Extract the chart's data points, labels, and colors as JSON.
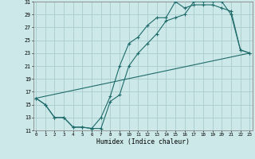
{
  "xlabel": "Humidex (Indice chaleur)",
  "bg_color": "#cce8e8",
  "grid_color": "#aacccc",
  "line_color": "#1f6b6b",
  "xlim": [
    0,
    23
  ],
  "ylim": [
    11,
    31
  ],
  "xtick_vals": [
    0,
    1,
    2,
    3,
    4,
    5,
    6,
    7,
    8,
    9,
    10,
    11,
    12,
    13,
    14,
    15,
    16,
    17,
    18,
    19,
    20,
    21,
    22,
    23
  ],
  "ytick_vals": [
    11,
    13,
    15,
    17,
    19,
    21,
    23,
    25,
    27,
    29,
    31
  ],
  "line1_x": [
    0,
    1,
    2,
    3,
    4,
    5,
    6,
    7,
    8,
    9,
    10,
    11,
    12,
    13,
    14,
    15,
    16,
    17,
    18,
    19,
    20,
    21,
    22,
    23
  ],
  "line1_y": [
    16,
    15,
    13,
    13,
    11.5,
    11.5,
    11.3,
    11.3,
    15.5,
    16.5,
    21.0,
    23.0,
    24.5,
    26.0,
    28.0,
    28.5,
    29.0,
    31.0,
    31.0,
    31.0,
    31.0,
    29.0,
    23.5,
    23.0
  ],
  "line2_x": [
    0,
    1,
    2,
    3,
    4,
    5,
    6,
    7,
    8,
    9,
    10,
    11,
    12,
    13,
    14,
    15,
    16,
    17,
    18,
    19,
    20,
    21,
    22,
    23
  ],
  "line2_y": [
    16,
    15,
    13,
    13,
    11.5,
    11.5,
    11.3,
    13.0,
    16.3,
    21.0,
    24.5,
    25.5,
    27.3,
    28.5,
    28.5,
    31.0,
    30.0,
    30.5,
    30.5,
    30.5,
    30.0,
    29.5,
    23.5,
    23.0
  ],
  "line3_x": [
    0,
    23
  ],
  "line3_y": [
    16,
    23.0
  ]
}
